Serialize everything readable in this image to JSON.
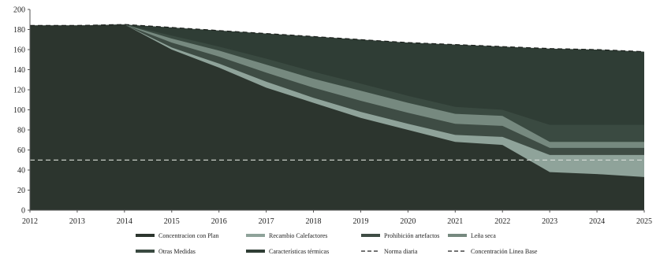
{
  "chart_data": {
    "type": "area",
    "title": "",
    "xlabel": "",
    "ylabel": "",
    "x": [
      "2012",
      "2013",
      "2014",
      "2015",
      "2016",
      "2017",
      "2018",
      "2019",
      "2020",
      "2021",
      "2022",
      "2023",
      "2024",
      "2025"
    ],
    "ylim": [
      0,
      200
    ],
    "yticks": [
      0,
      20,
      40,
      60,
      80,
      100,
      120,
      140,
      160,
      180,
      200
    ],
    "grid": false,
    "legend_position": "bottom",
    "series": [
      {
        "name": "Concentracion con Plan",
        "kind": "stacked-area",
        "values": [
          0,
          0,
          0,
          0,
          0,
          0,
          0,
          0,
          0,
          0,
          0,
          0,
          0,
          0
        ],
        "upper": [
          184,
          184,
          185,
          160,
          142,
          122,
          107,
          92,
          80,
          68,
          65,
          38,
          36,
          33
        ],
        "color": "#2c352e"
      },
      {
        "name": "Recambio Calefactores",
        "kind": "stacked-area",
        "values": [
          0,
          0,
          0,
          0,
          0,
          0,
          0,
          0,
          0,
          0,
          0,
          0,
          0,
          0
        ],
        "upper": [
          184,
          184,
          185,
          162,
          146,
          128,
          112,
          98,
          86,
          75,
          73,
          55,
          55,
          55
        ],
        "color": "#8fa39a"
      },
      {
        "name": "Prohibición artefactos",
        "kind": "stacked-area",
        "values": [
          0,
          0,
          0,
          0,
          0,
          0,
          0,
          0,
          0,
          0,
          0,
          0,
          0,
          0
        ],
        "upper": [
          184,
          184,
          185,
          167,
          153,
          137,
          122,
          109,
          97,
          86,
          84,
          62,
          62,
          62
        ],
        "color": "#3e4c44"
      },
      {
        "name": "Leña seca",
        "kind": "stacked-area",
        "values": [
          0,
          0,
          0,
          0,
          0,
          0,
          0,
          0,
          0,
          0,
          0,
          0,
          0,
          0
        ],
        "upper": [
          184,
          184,
          185,
          171,
          159,
          145,
          131,
          119,
          107,
          96,
          94,
          68,
          68,
          68
        ],
        "color": "#76897f"
      },
      {
        "name": "Otras Medidas",
        "kind": "stacked-area",
        "values": [
          0,
          0,
          0,
          0,
          0,
          0,
          0,
          0,
          0,
          0,
          0,
          0,
          0,
          0
        ],
        "upper": [
          184,
          184,
          185,
          174,
          163,
          151,
          138,
          126,
          114,
          103,
          100,
          85,
          85,
          85
        ],
        "color": "#3a4a41"
      },
      {
        "name": "Características térmicas",
        "kind": "stacked-area",
        "values": [
          0,
          0,
          0,
          0,
          0,
          0,
          0,
          0,
          0,
          0,
          0,
          0,
          0,
          0
        ],
        "upper": [
          184,
          184,
          185,
          182,
          179,
          176,
          173,
          170,
          167,
          165,
          163,
          161,
          160,
          158
        ],
        "color": "#2f3d35"
      },
      {
        "name": "Norma diaria",
        "kind": "dashed-line",
        "values": [
          50,
          50,
          50,
          50,
          50,
          50,
          50,
          50,
          50,
          50,
          50,
          50,
          50,
          50
        ],
        "color": "#d8ddd8"
      },
      {
        "name": "Concentración Linea Base",
        "kind": "dashed-line",
        "values": [
          184,
          184,
          185,
          182,
          179,
          176,
          173,
          170,
          167,
          165,
          163,
          161,
          160,
          158
        ],
        "color": "#1a1f1b"
      }
    ]
  }
}
